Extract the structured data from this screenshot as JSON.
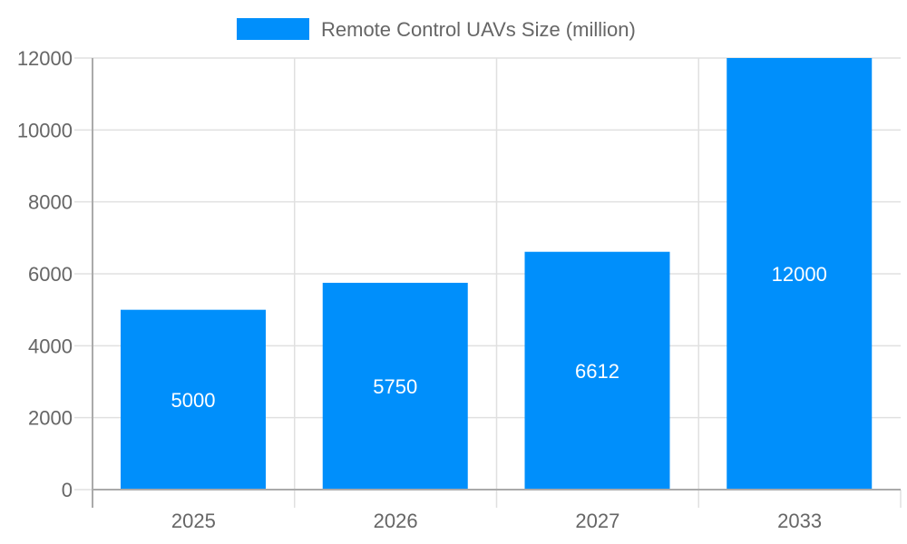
{
  "chart_data": {
    "type": "bar",
    "categories": [
      "2025",
      "2026",
      "2027",
      "2033"
    ],
    "series": [
      {
        "name": "Remote Control UAVs Size (million)",
        "values": [
          5000,
          5750,
          6612,
          12000
        ],
        "color": "#008ffb"
      }
    ],
    "ylim": [
      0,
      12000
    ],
    "yticks": [
      0,
      2000,
      4000,
      6000,
      8000,
      10000,
      12000
    ],
    "grid": true,
    "legend": "top-center",
    "data_labels": true
  }
}
